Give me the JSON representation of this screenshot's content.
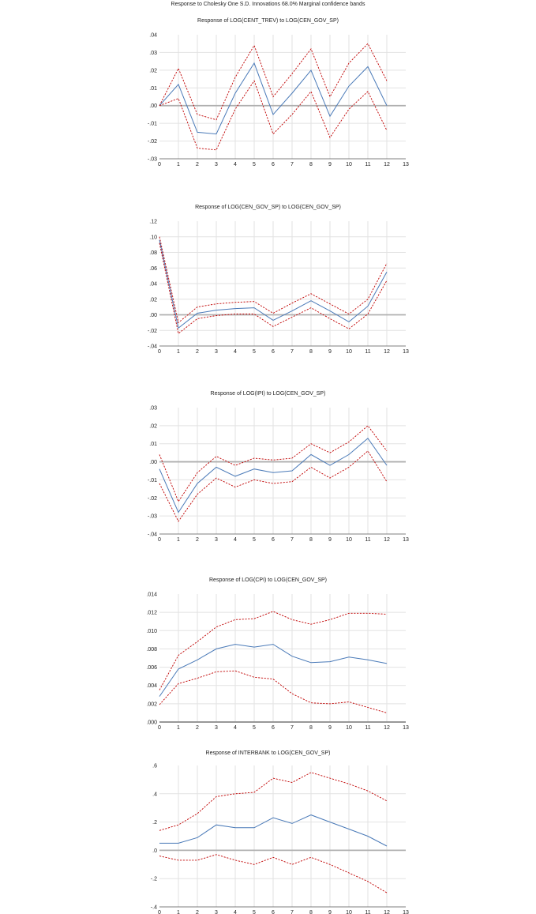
{
  "page": {
    "title": "Response to Cholesky One S.D. Innovations 68.0% Marginal confidence bands"
  },
  "colors": {
    "response": "#4a7ab8",
    "band": "#c00000",
    "grid": "#e2e2e2",
    "zero_line": "#b0b0b0"
  },
  "chart_data": [
    {
      "type": "line",
      "title": "Response of LOG(CENT_TREV) to LOG(CEN_GOV_SP)",
      "x": [
        0,
        1,
        2,
        3,
        4,
        5,
        6,
        7,
        8,
        9,
        10,
        11,
        12
      ],
      "xlim": [
        0,
        13
      ],
      "xticks": [
        "0",
        "1",
        "2",
        "3",
        "4",
        "5",
        "6",
        "7",
        "8",
        "9",
        "10",
        "11",
        "12",
        "13"
      ],
      "ylim": [
        -0.03,
        0.04
      ],
      "yticks": [
        {
          "v": 0.04,
          "label": ".04"
        },
        {
          "v": 0.03,
          "label": ".03"
        },
        {
          "v": 0.02,
          "label": ".02"
        },
        {
          "v": 0.01,
          "label": ".01"
        },
        {
          "v": 0.0,
          "label": ".00"
        },
        {
          "v": -0.01,
          "label": "-.01"
        },
        {
          "v": -0.02,
          "label": "-.02"
        },
        {
          "v": -0.03,
          "label": "-.03"
        }
      ],
      "zero_line": true,
      "grid": true,
      "series": [
        {
          "role": "upper",
          "values": [
            0.0,
            0.021,
            -0.005,
            -0.008,
            0.016,
            0.034,
            0.005,
            0.018,
            0.032,
            0.005,
            0.024,
            0.035,
            0.014
          ]
        },
        {
          "role": "response",
          "values": [
            0.0,
            0.012,
            -0.015,
            -0.016,
            0.007,
            0.024,
            -0.005,
            0.007,
            0.02,
            -0.006,
            0.011,
            0.022,
            0.0
          ]
        },
        {
          "role": "lower",
          "values": [
            0.0,
            0.004,
            -0.024,
            -0.025,
            -0.002,
            0.014,
            -0.016,
            -0.005,
            0.008,
            -0.018,
            -0.002,
            0.008,
            -0.014
          ]
        }
      ]
    },
    {
      "type": "line",
      "title": "Response of LOG(CEN_GOV_SP) to LOG(CEN_GOV_SP)",
      "x": [
        0,
        1,
        2,
        3,
        4,
        5,
        6,
        7,
        8,
        9,
        10,
        11,
        12
      ],
      "xlim": [
        0,
        13
      ],
      "xticks": [
        "0",
        "1",
        "2",
        "3",
        "4",
        "5",
        "6",
        "7",
        "8",
        "9",
        "10",
        "11",
        "12",
        "13"
      ],
      "ylim": [
        -0.04,
        0.12
      ],
      "yticks": [
        {
          "v": 0.12,
          "label": ".12"
        },
        {
          "v": 0.1,
          "label": ".10"
        },
        {
          "v": 0.08,
          "label": ".08"
        },
        {
          "v": 0.06,
          "label": ".06"
        },
        {
          "v": 0.04,
          "label": ".04"
        },
        {
          "v": 0.02,
          "label": ".02"
        },
        {
          "v": 0.0,
          "label": ".00"
        },
        {
          "v": -0.02,
          "label": "-.02"
        },
        {
          "v": -0.04,
          "label": "-.04"
        }
      ],
      "zero_line": true,
      "grid": true,
      "series": [
        {
          "role": "upper",
          "values": [
            0.1,
            -0.01,
            0.01,
            0.014,
            0.016,
            0.017,
            0.002,
            0.015,
            0.027,
            0.014,
            0.001,
            0.02,
            0.066
          ]
        },
        {
          "role": "response",
          "values": [
            0.096,
            -0.017,
            0.002,
            0.006,
            0.008,
            0.009,
            -0.007,
            0.005,
            0.018,
            0.005,
            -0.009,
            0.011,
            0.055
          ]
        },
        {
          "role": "lower",
          "values": [
            0.092,
            -0.024,
            -0.005,
            -0.001,
            0.001,
            0.001,
            -0.015,
            -0.003,
            0.009,
            -0.005,
            -0.018,
            0.001,
            0.044
          ]
        }
      ]
    },
    {
      "type": "line",
      "title": "Response of LOG(IPI) to LOG(CEN_GOV_SP)",
      "x": [
        0,
        1,
        2,
        3,
        4,
        5,
        6,
        7,
        8,
        9,
        10,
        11,
        12
      ],
      "xlim": [
        0,
        13
      ],
      "xticks": [
        "0",
        "1",
        "2",
        "3",
        "4",
        "5",
        "6",
        "7",
        "8",
        "9",
        "10",
        "11",
        "12",
        "13"
      ],
      "ylim": [
        -0.04,
        0.03
      ],
      "yticks": [
        {
          "v": 0.03,
          "label": ".03"
        },
        {
          "v": 0.02,
          "label": ".02"
        },
        {
          "v": 0.01,
          "label": ".01"
        },
        {
          "v": 0.0,
          "label": ".00"
        },
        {
          "v": -0.01,
          "label": "-.01"
        },
        {
          "v": -0.02,
          "label": "-.02"
        },
        {
          "v": -0.03,
          "label": "-.03"
        },
        {
          "v": -0.04,
          "label": "-.04"
        }
      ],
      "zero_line": true,
      "grid": true,
      "series": [
        {
          "role": "upper",
          "values": [
            0.004,
            -0.022,
            -0.006,
            0.003,
            -0.002,
            0.002,
            0.001,
            0.002,
            0.01,
            0.005,
            0.011,
            0.02,
            0.006
          ]
        },
        {
          "role": "response",
          "values": [
            -0.004,
            -0.028,
            -0.012,
            -0.003,
            -0.008,
            -0.004,
            -0.006,
            -0.005,
            0.004,
            -0.002,
            0.004,
            0.013,
            -0.002
          ]
        },
        {
          "role": "lower",
          "values": [
            -0.012,
            -0.033,
            -0.018,
            -0.009,
            -0.014,
            -0.01,
            -0.012,
            -0.011,
            -0.003,
            -0.009,
            -0.003,
            0.006,
            -0.011
          ]
        }
      ]
    },
    {
      "type": "line",
      "title": "Response of LOG(CPI) to LOG(CEN_GOV_SP)",
      "x": [
        0,
        1,
        2,
        3,
        4,
        5,
        6,
        7,
        8,
        9,
        10,
        11,
        12
      ],
      "xlim": [
        0,
        13
      ],
      "xticks": [
        "0",
        "1",
        "2",
        "3",
        "4",
        "5",
        "6",
        "7",
        "8",
        "9",
        "10",
        "11",
        "12",
        "13"
      ],
      "ylim": [
        0.0,
        0.014
      ],
      "yticks": [
        {
          "v": 0.014,
          "label": ".014"
        },
        {
          "v": 0.012,
          "label": ".012"
        },
        {
          "v": 0.01,
          "label": ".010"
        },
        {
          "v": 0.008,
          "label": ".008"
        },
        {
          "v": 0.006,
          "label": ".006"
        },
        {
          "v": 0.004,
          "label": ".004"
        },
        {
          "v": 0.002,
          "label": ".002"
        },
        {
          "v": 0.0,
          "label": ".000"
        }
      ],
      "zero_line": true,
      "grid": true,
      "series": [
        {
          "role": "upper",
          "values": [
            0.0035,
            0.0073,
            0.0088,
            0.0104,
            0.0112,
            0.0113,
            0.0121,
            0.0112,
            0.0107,
            0.0112,
            0.0119,
            0.0119,
            0.0118
          ]
        },
        {
          "role": "response",
          "values": [
            0.0028,
            0.0058,
            0.0068,
            0.008,
            0.0085,
            0.0082,
            0.0085,
            0.0072,
            0.0065,
            0.0066,
            0.0071,
            0.0068,
            0.0064
          ]
        },
        {
          "role": "lower",
          "values": [
            0.0019,
            0.0042,
            0.0048,
            0.0055,
            0.0056,
            0.0049,
            0.0047,
            0.0031,
            0.0021,
            0.002,
            0.0022,
            0.0016,
            0.001
          ]
        }
      ]
    },
    {
      "type": "line",
      "title": "Response of INTERBANK to LOG(CEN_GOV_SP)",
      "x": [
        0,
        1,
        2,
        3,
        4,
        5,
        6,
        7,
        8,
        9,
        10,
        11,
        12
      ],
      "xlim": [
        0,
        13
      ],
      "xticks": [
        "0",
        "1",
        "2",
        "3",
        "4",
        "5",
        "6",
        "7",
        "8",
        "9",
        "10",
        "11",
        "12",
        "13"
      ],
      "ylim": [
        -0.4,
        0.6
      ],
      "yticks": [
        {
          "v": 0.6,
          "label": ".6"
        },
        {
          "v": 0.4,
          "label": ".4"
        },
        {
          "v": 0.2,
          "label": ".2"
        },
        {
          "v": 0.0,
          "label": ".0"
        },
        {
          "v": -0.2,
          "label": "-.2"
        },
        {
          "v": -0.4,
          "label": "-.4"
        }
      ],
      "zero_line": true,
      "grid": true,
      "series": [
        {
          "role": "upper",
          "values": [
            0.14,
            0.18,
            0.26,
            0.38,
            0.4,
            0.41,
            0.51,
            0.48,
            0.55,
            0.51,
            0.47,
            0.42,
            0.35
          ]
        },
        {
          "role": "response",
          "values": [
            0.05,
            0.05,
            0.09,
            0.18,
            0.16,
            0.16,
            0.23,
            0.19,
            0.25,
            0.2,
            0.15,
            0.1,
            0.03
          ]
        },
        {
          "role": "lower",
          "values": [
            -0.04,
            -0.07,
            -0.07,
            -0.03,
            -0.07,
            -0.1,
            -0.05,
            -0.1,
            -0.05,
            -0.1,
            -0.16,
            -0.22,
            -0.3
          ]
        }
      ]
    }
  ]
}
